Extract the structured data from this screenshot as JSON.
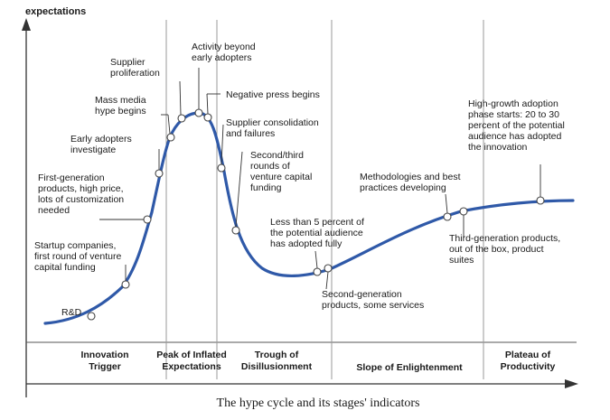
{
  "y_axis_label": "expectations",
  "caption": "The hype cycle and its stages' indicators",
  "curve_color": "#2f59a8",
  "phases": [
    {
      "lines": [
        "Innovation",
        "Trigger"
      ]
    },
    {
      "lines": [
        "Peak of Inflated",
        "Expectations"
      ]
    },
    {
      "lines": [
        "Trough of",
        "Disillusionment"
      ]
    },
    {
      "lines": [
        "Slope of Enlightenment"
      ]
    },
    {
      "lines": [
        "Plateau of",
        "Productivity"
      ]
    }
  ],
  "indicators": [
    {
      "lines": [
        "R&D"
      ]
    },
    {
      "lines": [
        "Startup companies,",
        "first round of venture",
        "capital funding"
      ]
    },
    {
      "lines": [
        "First-generation",
        "products, high price,",
        "lots of customization",
        "needed"
      ]
    },
    {
      "lines": [
        "Early adopters",
        "investigate"
      ]
    },
    {
      "lines": [
        "Mass media",
        "hype begins"
      ]
    },
    {
      "lines": [
        "Supplier",
        "proliferation"
      ]
    },
    {
      "lines": [
        "Activity beyond",
        "early adopters"
      ]
    },
    {
      "lines": [
        "Negative press begins"
      ]
    },
    {
      "lines": [
        "Supplier consolidation",
        "and failures"
      ]
    },
    {
      "lines": [
        "Second/third",
        "rounds of",
        "venture capital",
        "funding"
      ]
    },
    {
      "lines": [
        "Less than 5 percent of",
        "the potential audience",
        "has adopted fully"
      ]
    },
    {
      "lines": [
        "Second-generation",
        "products, some services"
      ]
    },
    {
      "lines": [
        "Methodologies and best",
        "practices developing"
      ]
    },
    {
      "lines": [
        "Third-generation products,",
        "out of the box, product",
        "suites"
      ]
    },
    {
      "lines": [
        "High-growth adoption",
        "phase starts: 20 to 30",
        "percent of the potential",
        "audience has adopted",
        "the innovation"
      ]
    }
  ]
}
